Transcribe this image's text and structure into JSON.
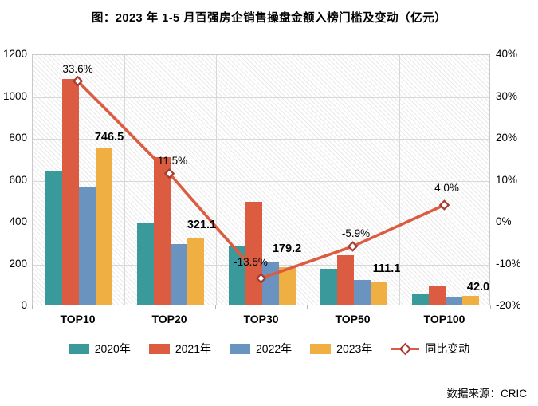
{
  "chart_data": {
    "type": "bar",
    "combo": "grouped bars with overlay line on secondary percent axis",
    "title": "图：2023 年 1-5 月百强房企销售操盘金额入榜门槛及变动（亿元）",
    "categories": [
      "TOP10",
      "TOP20",
      "TOP30",
      "TOP50",
      "TOP100"
    ],
    "series": [
      {
        "name": "2020年",
        "color": "#3A9A9B",
        "values": [
          640,
          390,
          284,
          172,
          50
        ]
      },
      {
        "name": "2021年",
        "color": "#DC5C41",
        "values": [
          1080,
          705,
          490,
          238,
          90
        ]
      },
      {
        "name": "2022年",
        "color": "#6A94BF",
        "values": [
          559,
          288,
          207,
          118,
          40
        ]
      },
      {
        "name": "2023年",
        "color": "#EFAF42",
        "values": [
          746.5,
          321.1,
          179.2,
          111.1,
          42.0
        ],
        "value_labels": [
          "746.5",
          "321.1",
          "179.2",
          "111.1",
          "42.0"
        ]
      }
    ],
    "line_series": {
      "name": "同比变动",
      "color": "#DC5C41",
      "marker": "diamond-white-fill",
      "marker_stroke": "#A53C31",
      "values_pct": [
        33.6,
        11.5,
        -13.5,
        -5.9,
        4.0
      ],
      "value_labels": [
        "33.6%",
        "11.5%",
        "-13.5%",
        "-5.9%",
        "4.0%"
      ]
    },
    "left_axis": {
      "min": 0,
      "max": 1200,
      "ticks": [
        "1200",
        "1000",
        "800",
        "600",
        "400",
        "200",
        "0"
      ]
    },
    "right_axis": {
      "min": -20,
      "max": 40,
      "ticks": [
        "40%",
        "30%",
        "20%",
        "10%",
        "0%",
        "-10%",
        "-20%"
      ]
    },
    "grid": "horizontal and vertical light gray, hatched plot background",
    "legend_position": "bottom-center",
    "source": "数据来源：CRIC"
  }
}
